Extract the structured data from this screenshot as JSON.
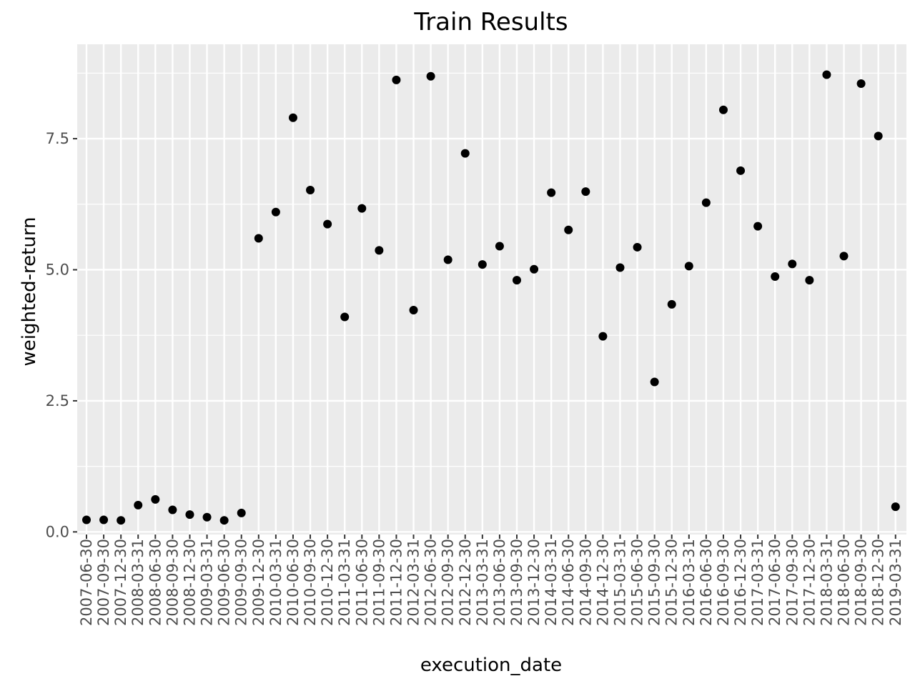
{
  "chart_data": {
    "type": "scatter",
    "title": "Train Results",
    "xlabel": "execution_date",
    "ylabel": "weighted-return",
    "ylim": [
      -0.05,
      9.3
    ],
    "yticks": [
      0.0,
      2.5,
      5.0,
      7.5
    ],
    "ytick_labels": [
      "0.0",
      "2.5",
      "5.0",
      "7.5"
    ],
    "grid": true,
    "colors": {
      "panel": "#ebebeb",
      "grid": "#ffffff",
      "point": "#000000",
      "tick_text": "#4d4d4d"
    },
    "x": [
      "2007-06-30",
      "2007-09-30",
      "2007-12-30",
      "2008-03-31",
      "2008-06-30",
      "2008-09-30",
      "2008-12-30",
      "2009-03-31",
      "2009-06-30",
      "2009-09-30",
      "2009-12-30",
      "2010-03-31",
      "2010-06-30",
      "2010-09-30",
      "2010-12-30",
      "2011-03-31",
      "2011-06-30",
      "2011-09-30",
      "2011-12-30",
      "2012-03-31",
      "2012-06-30",
      "2012-09-30",
      "2012-12-30",
      "2013-03-31",
      "2013-06-30",
      "2013-09-30",
      "2013-12-30",
      "2014-03-31",
      "2014-06-30",
      "2014-09-30",
      "2014-12-30",
      "2015-03-31",
      "2015-06-30",
      "2015-09-30",
      "2015-12-30",
      "2016-03-31",
      "2016-06-30",
      "2016-09-30",
      "2016-12-30",
      "2017-03-31",
      "2017-06-30",
      "2017-09-30",
      "2017-12-30",
      "2018-03-31",
      "2018-06-30",
      "2018-09-30",
      "2018-12-30",
      "2019-03-31"
    ],
    "y": [
      0.23,
      0.23,
      0.22,
      0.51,
      0.62,
      0.42,
      0.33,
      0.28,
      0.22,
      0.36,
      5.6,
      6.1,
      7.9,
      6.52,
      5.87,
      4.1,
      6.17,
      5.37,
      8.62,
      4.23,
      8.69,
      5.19,
      7.22,
      5.1,
      5.45,
      4.8,
      5.01,
      6.47,
      5.76,
      6.49,
      3.73,
      5.04,
      5.43,
      2.86,
      4.34,
      5.07,
      6.28,
      8.05,
      6.89,
      5.83,
      4.87,
      5.11,
      4.8,
      8.72,
      5.26,
      8.55,
      7.55,
      0.48
    ]
  }
}
